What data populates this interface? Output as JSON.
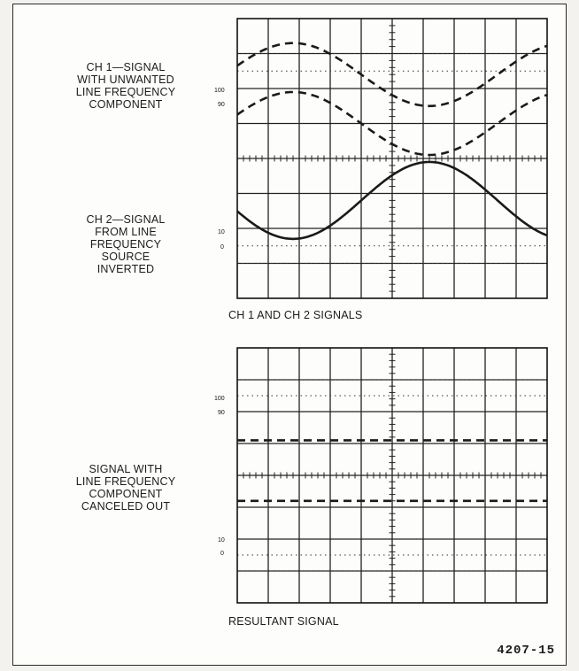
{
  "figure_number": "4207-15",
  "top_panel": {
    "label_ch1": "CH 1—SIGNAL\nWITH UNWANTED\nLINE FREQUENCY\nCOMPONENT",
    "label_ch2": "CH 2—SIGNAL\nFROM LINE\nFREQUENCY\nSOURCE\nINVERTED",
    "caption": "CH 1 AND CH 2 SIGNALS",
    "graticule_labels": {
      "l100": "100",
      "l90": "90",
      "l10": "10",
      "l0": "0"
    }
  },
  "bottom_panel": {
    "label": "SIGNAL WITH\nLINE FREQUENCY\nCOMPONENT\nCANCELED OUT",
    "caption": "RESULTANT SIGNAL",
    "graticule_labels": {
      "l100": "100",
      "l90": "90",
      "l10": "10",
      "l0": "0"
    }
  },
  "graticule": {
    "divisions_x": 10,
    "divisions_y": 8,
    "minor_per_division": 5
  },
  "traces": {
    "ch1_upper_dashed": {
      "style": "dashed",
      "center_div": 1.6,
      "amplitude_div": 0.9,
      "period_div": 8.8,
      "phase_div": 1.8
    },
    "ch1_lower_dashed": {
      "style": "dashed",
      "center_div": 3.0,
      "amplitude_div": 0.9,
      "period_div": 8.8,
      "phase_div": 1.8
    },
    "ch2_solid": {
      "style": "solid",
      "center_div": 5.2,
      "amplitude_div": 1.1,
      "period_div": 8.8,
      "phase_div": 1.8
    },
    "result_upper_dashed": {
      "style": "dashed",
      "level_div": 2.9
    },
    "result_lower_dashed": {
      "style": "dashed",
      "level_div": 4.8
    }
  }
}
